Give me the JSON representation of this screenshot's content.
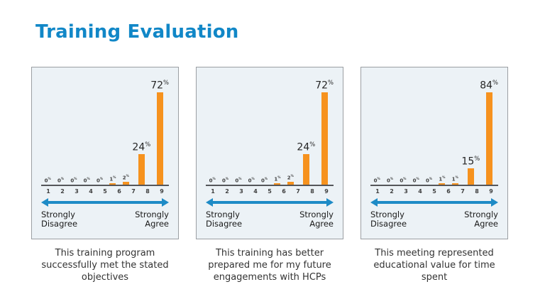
{
  "title": "Training Evaluation",
  "colors": {
    "title_blue": "#1187C7",
    "bar_orange": "#F6921E",
    "arrow_blue": "#1E8BC6",
    "panel_background": "#ECF2F6",
    "panel_border": "#9B9FA3",
    "axis_gray": "#55565A"
  },
  "scale": {
    "left_label": "Strongly Disagree",
    "right_label": "Strongly Agree"
  },
  "chart_data": [
    {
      "type": "bar",
      "categories": [
        "1",
        "2",
        "3",
        "4",
        "5",
        "6",
        "7",
        "8",
        "9"
      ],
      "values": [
        0,
        0,
        0,
        0,
        0,
        1,
        2,
        24,
        72
      ],
      "value_labels": [
        "0%",
        "0%",
        "0%",
        "0%",
        "0%",
        "1%",
        "2%",
        "24%",
        "72%"
      ],
      "xlabel_left": "Strongly Disagree",
      "xlabel_right": "Strongly Agree",
      "ylim": [
        0,
        80
      ],
      "legend": "none",
      "grid": false,
      "caption": "This training program successfully met the stated objectives"
    },
    {
      "type": "bar",
      "categories": [
        "1",
        "2",
        "3",
        "4",
        "5",
        "6",
        "7",
        "8",
        "9"
      ],
      "values": [
        0,
        0,
        0,
        0,
        0,
        1,
        2,
        24,
        72
      ],
      "value_labels": [
        "0%",
        "0%",
        "0%",
        "0%",
        "0%",
        "1%",
        "2%",
        "24%",
        "72%"
      ],
      "xlabel_left": "Strongly Disagree",
      "xlabel_right": "Strongly Agree",
      "ylim": [
        0,
        80
      ],
      "legend": "none",
      "grid": false,
      "caption": "This training has better prepared me for my future engagements with HCPs"
    },
    {
      "type": "bar",
      "categories": [
        "1",
        "2",
        "3",
        "4",
        "5",
        "6",
        "7",
        "8",
        "9"
      ],
      "values": [
        0,
        0,
        0,
        0,
        0,
        1,
        1,
        15,
        84
      ],
      "value_labels": [
        "0%",
        "0%",
        "0%",
        "0%",
        "0%",
        "1%",
        "1%",
        "15%",
        "84%"
      ],
      "xlabel_left": "Strongly Disagree",
      "xlabel_right": "Strongly Agree",
      "ylim": [
        0,
        90
      ],
      "legend": "none",
      "grid": false,
      "caption": "This meeting represented educational value for time spent"
    }
  ]
}
